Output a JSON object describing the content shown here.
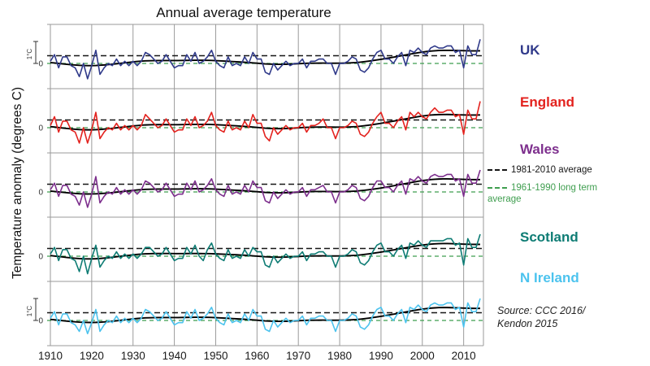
{
  "source": {
    "line1": "Source: CCC 2016/",
    "line2": "Kendon 2015"
  },
  "chart_data": {
    "type": "line",
    "title": "Annual average temperature",
    "ylabel": "Temperature anomaly (degrees C)",
    "x_start": 1910,
    "x_end": 2014,
    "x_ticks": [
      1910,
      1920,
      1930,
      1940,
      1950,
      1960,
      1970,
      1980,
      1990,
      2000,
      2010
    ],
    "x_tick_labels": [
      "1910",
      "1920",
      "1930",
      "1940",
      "1950",
      "1960",
      "1970",
      "1980",
      "1990",
      "2000",
      "2010"
    ],
    "unit_marker": "1°C",
    "zero_label": "0",
    "grid_color": "#9a9a9a",
    "trend_color": "#000000",
    "layout": {
      "bands_stacked": true,
      "grid": true,
      "legend_position": "right"
    },
    "reference_lines": [
      {
        "label": "1981-2010 average",
        "style": "dashed",
        "color": "#161616",
        "value": 0.35
      },
      {
        "label": "1961-1990 long term average",
        "style": "dashed",
        "color": "#3f9e4f",
        "value": 0
      }
    ],
    "series": [
      {
        "name": "UK",
        "color": "#303a8a",
        "values": [
          0.1,
          0.4,
          -0.2,
          0.3,
          0.3,
          -0.1,
          -0.2,
          -0.6,
          0.0,
          -0.7,
          -0.1,
          0.6,
          -0.5,
          -0.2,
          0.0,
          -0.1,
          0.2,
          -0.1,
          0.1,
          -0.1,
          0.1,
          -0.1,
          0.1,
          0.5,
          0.4,
          0.2,
          0.0,
          0.1,
          0.4,
          0.1,
          -0.2,
          -0.1,
          -0.1,
          0.4,
          0.1,
          0.5,
          0.0,
          0.1,
          0.3,
          0.6,
          0.1,
          -0.1,
          -0.2,
          0.3,
          -0.1,
          0.0,
          -0.1,
          0.3,
          0.0,
          0.5,
          0.2,
          0.2,
          -0.4,
          -0.5,
          0.0,
          -0.3,
          -0.1,
          0.1,
          -0.1,
          0.0,
          0.0,
          0.2,
          -0.2,
          0.1,
          0.1,
          0.2,
          0.2,
          0.0,
          0.0,
          -0.5,
          0.0,
          0.0,
          0.1,
          0.3,
          0.2,
          -0.3,
          -0.4,
          -0.2,
          0.2,
          0.5,
          0.6,
          0.2,
          0.2,
          0.0,
          0.3,
          0.5,
          -0.1,
          0.6,
          0.5,
          0.7,
          0.5,
          0.4,
          0.7,
          0.8,
          0.7,
          0.7,
          0.8,
          0.8,
          0.5,
          0.6,
          -0.2,
          0.8,
          0.4,
          0.4,
          1.1
        ]
      },
      {
        "name": "England",
        "color": "#e3221e",
        "values": [
          0.1,
          0.5,
          -0.2,
          0.3,
          0.3,
          -0.1,
          -0.2,
          -0.7,
          0.0,
          -0.7,
          -0.1,
          0.7,
          -0.5,
          -0.2,
          0.0,
          -0.1,
          0.2,
          -0.1,
          0.1,
          -0.1,
          0.1,
          -0.1,
          0.1,
          0.6,
          0.4,
          0.2,
          0.0,
          0.1,
          0.4,
          0.1,
          -0.2,
          -0.1,
          -0.1,
          0.4,
          0.1,
          0.5,
          0.0,
          0.1,
          0.3,
          0.7,
          0.1,
          -0.1,
          -0.2,
          0.3,
          -0.1,
          0.0,
          -0.1,
          0.3,
          0.0,
          0.6,
          0.2,
          0.2,
          -0.4,
          -0.6,
          0.0,
          -0.3,
          -0.1,
          0.1,
          -0.1,
          0.0,
          0.0,
          0.2,
          -0.2,
          0.1,
          0.1,
          0.2,
          0.4,
          0.0,
          0.0,
          -0.5,
          0.0,
          0.0,
          0.1,
          0.3,
          0.2,
          -0.3,
          -0.4,
          -0.2,
          0.2,
          0.5,
          0.7,
          0.2,
          0.2,
          0.0,
          0.3,
          0.5,
          -0.1,
          0.7,
          0.5,
          0.7,
          0.5,
          0.4,
          0.7,
          0.9,
          0.7,
          0.7,
          0.8,
          0.8,
          0.5,
          0.6,
          -0.3,
          0.8,
          0.4,
          0.4,
          1.2
        ]
      },
      {
        "name": "Wales",
        "color": "#7d2f8d",
        "values": [
          0.1,
          0.4,
          -0.2,
          0.3,
          0.3,
          -0.1,
          -0.2,
          -0.6,
          0.0,
          -0.7,
          -0.1,
          0.7,
          -0.5,
          -0.2,
          0.0,
          -0.1,
          0.2,
          -0.1,
          0.1,
          -0.1,
          0.1,
          -0.1,
          0.1,
          0.5,
          0.4,
          0.2,
          0.0,
          0.1,
          0.4,
          0.1,
          -0.2,
          -0.1,
          -0.1,
          0.4,
          0.1,
          0.5,
          0.0,
          0.1,
          0.3,
          0.6,
          0.1,
          -0.1,
          -0.2,
          0.3,
          -0.1,
          0.0,
          -0.1,
          0.3,
          0.0,
          0.5,
          0.2,
          0.2,
          -0.4,
          -0.5,
          0.0,
          -0.3,
          -0.1,
          0.1,
          -0.1,
          0.0,
          0.0,
          0.2,
          -0.2,
          0.1,
          0.1,
          0.2,
          0.3,
          0.0,
          0.0,
          -0.5,
          0.0,
          0.0,
          0.1,
          0.3,
          0.2,
          -0.3,
          -0.4,
          -0.2,
          0.2,
          0.5,
          0.5,
          0.2,
          0.2,
          0.0,
          0.3,
          0.5,
          -0.1,
          0.6,
          0.5,
          0.7,
          0.5,
          0.4,
          0.7,
          0.8,
          0.7,
          0.7,
          0.8,
          0.8,
          0.5,
          0.6,
          -0.2,
          0.8,
          0.4,
          0.4,
          1.0
        ]
      },
      {
        "name": "Scotland",
        "color": "#0e7c74",
        "values": [
          0.1,
          0.4,
          -0.2,
          0.3,
          0.3,
          -0.1,
          -0.2,
          -0.7,
          0.0,
          -0.8,
          -0.1,
          0.5,
          -0.5,
          -0.2,
          0.0,
          -0.1,
          0.2,
          -0.1,
          0.1,
          -0.1,
          0.1,
          -0.1,
          0.1,
          0.4,
          0.4,
          0.2,
          0.0,
          0.1,
          0.4,
          0.1,
          -0.2,
          -0.1,
          -0.1,
          0.4,
          0.1,
          0.5,
          0.0,
          -0.2,
          0.3,
          0.6,
          0.1,
          -0.1,
          -0.2,
          0.3,
          -0.1,
          0.0,
          -0.1,
          0.3,
          0.0,
          0.4,
          0.2,
          0.2,
          -0.4,
          -0.5,
          0.0,
          -0.3,
          -0.1,
          0.1,
          -0.1,
          0.0,
          0.0,
          0.2,
          -0.2,
          0.1,
          0.1,
          0.2,
          0.2,
          0.0,
          0.0,
          -0.5,
          0.0,
          0.0,
          0.1,
          0.3,
          0.2,
          -0.3,
          -0.4,
          -0.2,
          0.2,
          0.5,
          0.6,
          0.2,
          0.2,
          0.0,
          0.3,
          0.5,
          -0.1,
          0.6,
          0.5,
          0.7,
          0.5,
          0.4,
          0.7,
          0.7,
          0.7,
          0.7,
          0.8,
          0.8,
          0.5,
          0.6,
          -0.4,
          0.8,
          0.4,
          0.4,
          1.0
        ]
      },
      {
        "name": "N Ireland",
        "color": "#4cc3ee",
        "values": [
          0.1,
          0.4,
          -0.2,
          0.3,
          0.3,
          -0.1,
          -0.2,
          -0.5,
          0.0,
          -0.6,
          -0.1,
          0.5,
          -0.5,
          -0.2,
          0.0,
          -0.1,
          0.2,
          -0.1,
          0.1,
          -0.1,
          0.1,
          -0.1,
          0.1,
          0.5,
          0.4,
          0.2,
          0.0,
          0.1,
          0.4,
          0.1,
          -0.2,
          -0.1,
          -0.1,
          0.4,
          0.1,
          0.5,
          0.0,
          0.1,
          0.3,
          0.6,
          0.1,
          -0.1,
          -0.2,
          0.3,
          -0.1,
          0.0,
          -0.1,
          0.3,
          0.0,
          0.5,
          0.2,
          0.2,
          -0.4,
          -0.5,
          0.0,
          -0.3,
          -0.1,
          0.1,
          -0.1,
          0.0,
          0.0,
          0.2,
          -0.2,
          0.1,
          0.1,
          0.2,
          0.2,
          0.0,
          0.0,
          -0.5,
          0.0,
          0.0,
          0.1,
          0.3,
          0.2,
          -0.3,
          -0.4,
          -0.2,
          0.2,
          0.5,
          0.6,
          0.2,
          0.2,
          0.0,
          0.3,
          0.5,
          -0.1,
          0.6,
          0.5,
          0.7,
          0.5,
          0.4,
          0.7,
          0.8,
          0.7,
          0.7,
          0.8,
          0.8,
          0.5,
          0.6,
          -0.3,
          0.8,
          0.4,
          0.4,
          1.0
        ]
      }
    ]
  }
}
